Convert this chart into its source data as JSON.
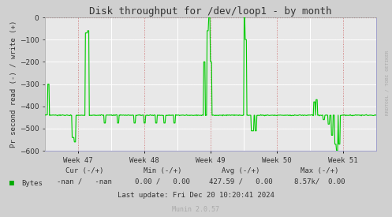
{
  "title": "Disk throughput for /dev/loop1 - by month",
  "ylabel": "Pr second read (-) / write (+)",
  "xlabel_ticks": [
    "Week 47",
    "Week 48",
    "Week 49",
    "Week 50",
    "Week 51"
  ],
  "ylim": [
    -600,
    0
  ],
  "yticks": [
    0,
    -100,
    -200,
    -300,
    -400,
    -500,
    -600
  ],
  "bg_color": "#d0d0d0",
  "plot_bg_color": "#e8e8e8",
  "line_color": "#00cc00",
  "legend_color": "#00aa00",
  "legend_label": "Bytes",
  "stats_row1": [
    "Cur (-/+)",
    "Min (-/+)",
    "Avg (-/+)",
    "Max (-/+)"
  ],
  "stats_row2": [
    "-nan /   -nan",
    "0.00 /   0.00",
    "427.59 /   0.00",
    "8.57k/  0.00"
  ],
  "footer_text": "Last update: Fri Dec 20 10:20:41 2024",
  "footer_munin": "Munin 2.0.57",
  "watermark": "RRDTOOL / TOBI OETIKER",
  "n_points": 600,
  "baseline": -440,
  "font_color": "#333333",
  "muted_color": "#aaaaaa",
  "red_dotted": "#cc6666",
  "spine_arrow_color": "#9999cc"
}
